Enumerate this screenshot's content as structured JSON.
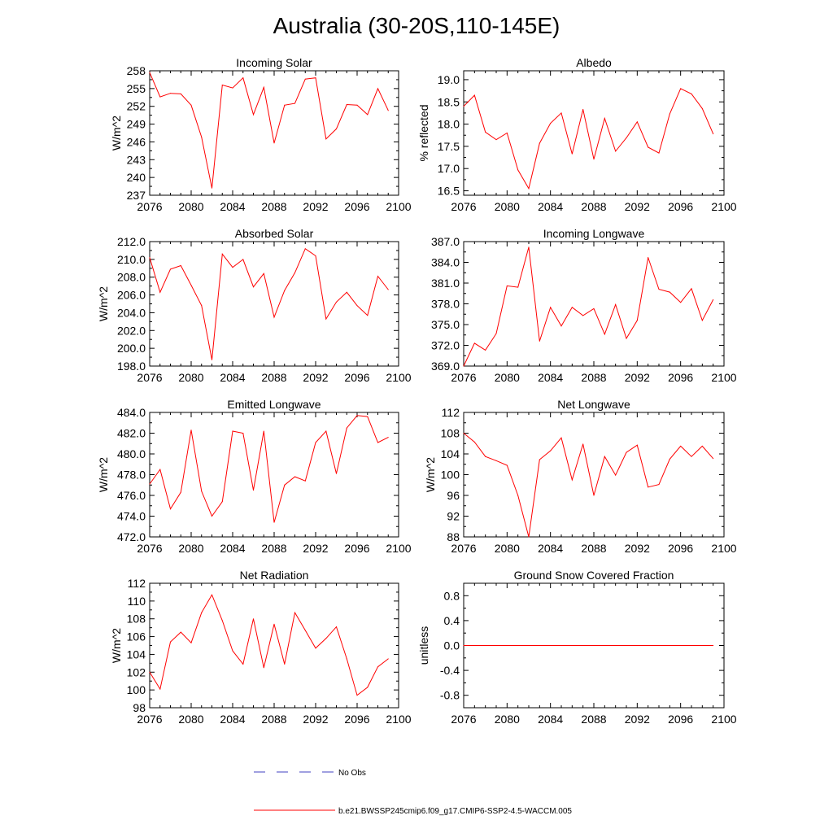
{
  "figure": {
    "title": "Australia (30-20S,110-145E)",
    "line_color": "#ff0000",
    "obs_line_color": "#4040c0"
  },
  "legend": {
    "obs_label": "No Obs",
    "model_label": "b.e21.BWSSP245cmip6.f09_g17.CMIP6-SSP2-4.5-WACCM.005"
  },
  "chart_data": [
    {
      "type": "line",
      "title": "Incoming Solar",
      "xlabel": "",
      "ylabel": "W/m^2",
      "xlim": [
        2076,
        2100
      ],
      "ylim": [
        237,
        258
      ],
      "xticks": [
        2076,
        2080,
        2084,
        2088,
        2092,
        2096,
        2100
      ],
      "xtick_labels": [
        "2076",
        "2080",
        "2084",
        "2088",
        "2092",
        "2096",
        "2100"
      ],
      "yticks": [
        237,
        240,
        243,
        246,
        249,
        252,
        255,
        258
      ],
      "ytick_labels": [
        "237",
        "240",
        "243",
        "246",
        "249",
        "252",
        "255",
        "258"
      ],
      "grid": false,
      "x": [
        2076,
        2077,
        2078,
        2079,
        2080,
        2081,
        2082,
        2083,
        2084,
        2085,
        2086,
        2087,
        2088,
        2089,
        2090,
        2091,
        2092,
        2093,
        2094,
        2095,
        2096,
        2097,
        2098,
        2099
      ],
      "values": [
        257.7,
        253.6,
        254.2,
        254.1,
        252.2,
        246.8,
        238.2,
        255.6,
        255.1,
        256.8,
        250.6,
        255.2,
        245.8,
        252.2,
        252.5,
        256.6,
        256.8,
        246.5,
        248.2,
        252.3,
        252.2,
        250.6,
        255.0,
        251.3
      ]
    },
    {
      "type": "line",
      "title": "Albedo",
      "xlabel": "",
      "ylabel": "% reflected",
      "xlim": [
        2076,
        2100
      ],
      "ylim": [
        16.4,
        19.2
      ],
      "xticks": [
        2076,
        2080,
        2084,
        2088,
        2092,
        2096,
        2100
      ],
      "xtick_labels": [
        "2076",
        "2080",
        "2084",
        "2088",
        "2092",
        "2096",
        "2100"
      ],
      "yticks": [
        16.5,
        17.0,
        17.5,
        18.0,
        18.5,
        19.0
      ],
      "ytick_labels": [
        "16.5",
        "17.0",
        "17.5",
        "18.0",
        "18.5",
        "19.0"
      ],
      "grid": false,
      "x": [
        2076,
        2077,
        2078,
        2079,
        2080,
        2081,
        2082,
        2083,
        2084,
        2085,
        2086,
        2087,
        2088,
        2089,
        2090,
        2091,
        2092,
        2093,
        2094,
        2095,
        2096,
        2097,
        2098,
        2099
      ],
      "values": [
        18.4,
        18.65,
        17.82,
        17.65,
        17.8,
        16.97,
        16.55,
        17.57,
        18.02,
        18.25,
        17.33,
        18.33,
        17.21,
        18.13,
        17.39,
        17.69,
        18.05,
        17.48,
        17.35,
        18.23,
        18.8,
        18.68,
        18.35,
        17.78
      ]
    },
    {
      "type": "line",
      "title": "Absorbed Solar",
      "xlabel": "",
      "ylabel": "W/m^2",
      "xlim": [
        2076,
        2100
      ],
      "ylim": [
        198,
        212
      ],
      "xticks": [
        2076,
        2080,
        2084,
        2088,
        2092,
        2096,
        2100
      ],
      "xtick_labels": [
        "2076",
        "2080",
        "2084",
        "2088",
        "2092",
        "2096",
        "2100"
      ],
      "yticks": [
        198,
        200,
        202,
        204,
        206,
        208,
        210,
        212
      ],
      "ytick_labels": [
        "198.0",
        "200.0",
        "202.0",
        "204.0",
        "206.0",
        "208.0",
        "210.0",
        "212.0"
      ],
      "grid": false,
      "x": [
        2076,
        2077,
        2078,
        2079,
        2080,
        2081,
        2082,
        2083,
        2084,
        2085,
        2086,
        2087,
        2088,
        2089,
        2090,
        2091,
        2092,
        2093,
        2094,
        2095,
        2096,
        2097,
        2098,
        2099
      ],
      "values": [
        210.2,
        206.3,
        208.9,
        209.3,
        207.1,
        204.8,
        198.7,
        210.6,
        209.1,
        210.0,
        206.9,
        208.4,
        203.5,
        206.5,
        208.5,
        211.2,
        210.4,
        203.3,
        205.2,
        206.3,
        204.8,
        203.7,
        208.1,
        206.6
      ]
    },
    {
      "type": "line",
      "title": "Incoming Longwave",
      "xlabel": "",
      "ylabel": "",
      "xlim": [
        2076,
        2100
      ],
      "ylim": [
        369,
        387
      ],
      "xticks": [
        2076,
        2080,
        2084,
        2088,
        2092,
        2096,
        2100
      ],
      "xtick_labels": [
        "2076",
        "2080",
        "2084",
        "2088",
        "2092",
        "2096",
        "2100"
      ],
      "yticks": [
        369,
        372,
        375,
        378,
        381,
        384,
        387
      ],
      "ytick_labels": [
        "369.0",
        "372.0",
        "375.0",
        "378.0",
        "381.0",
        "384.0",
        "387.0"
      ],
      "grid": false,
      "x": [
        2076,
        2077,
        2078,
        2079,
        2080,
        2081,
        2082,
        2083,
        2084,
        2085,
        2086,
        2087,
        2088,
        2089,
        2090,
        2091,
        2092,
        2093,
        2094,
        2095,
        2096,
        2097,
        2098,
        2099
      ],
      "values": [
        369.0,
        372.3,
        371.3,
        373.7,
        380.6,
        380.4,
        386.2,
        372.6,
        377.5,
        374.8,
        377.5,
        376.3,
        377.3,
        373.6,
        377.9,
        373.0,
        375.6,
        384.7,
        380.1,
        379.7,
        378.2,
        380.2,
        375.6,
        378.6
      ]
    },
    {
      "type": "line",
      "title": "Emitted Longwave",
      "xlabel": "",
      "ylabel": "W/m^2",
      "xlim": [
        2076,
        2100
      ],
      "ylim": [
        472,
        484
      ],
      "xticks": [
        2076,
        2080,
        2084,
        2088,
        2092,
        2096,
        2100
      ],
      "xtick_labels": [
        "2076",
        "2080",
        "2084",
        "2088",
        "2092",
        "2096",
        "2100"
      ],
      "yticks": [
        472,
        474,
        476,
        478,
        480,
        482,
        484
      ],
      "ytick_labels": [
        "472.0",
        "474.0",
        "476.0",
        "478.0",
        "480.0",
        "482.0",
        "484.0"
      ],
      "grid": false,
      "x": [
        2076,
        2077,
        2078,
        2079,
        2080,
        2081,
        2082,
        2083,
        2084,
        2085,
        2086,
        2087,
        2088,
        2089,
        2090,
        2091,
        2092,
        2093,
        2094,
        2095,
        2096,
        2097,
        2098,
        2099
      ],
      "values": [
        477.1,
        478.5,
        474.7,
        476.3,
        482.3,
        476.4,
        474.0,
        475.4,
        482.2,
        482.0,
        476.5,
        482.2,
        473.4,
        477.0,
        477.8,
        477.4,
        481.1,
        482.2,
        478.1,
        482.5,
        483.7,
        483.6,
        481.1,
        481.6
      ]
    },
    {
      "type": "line",
      "title": "Net Longwave",
      "xlabel": "",
      "ylabel": "W/m^2",
      "xlim": [
        2076,
        2100
      ],
      "ylim": [
        88,
        112
      ],
      "xticks": [
        2076,
        2080,
        2084,
        2088,
        2092,
        2096,
        2100
      ],
      "xtick_labels": [
        "2076",
        "2080",
        "2084",
        "2088",
        "2092",
        "2096",
        "2100"
      ],
      "yticks": [
        88,
        92,
        96,
        100,
        104,
        108,
        112
      ],
      "ytick_labels": [
        "88",
        "92",
        "96",
        "100",
        "104",
        "108",
        "112"
      ],
      "grid": false,
      "x": [
        2076,
        2077,
        2078,
        2079,
        2080,
        2081,
        2082,
        2083,
        2084,
        2085,
        2086,
        2087,
        2088,
        2089,
        2090,
        2091,
        2092,
        2093,
        2094,
        2095,
        2096,
        2097,
        2098,
        2099
      ],
      "values": [
        108.0,
        106.3,
        103.5,
        102.7,
        101.8,
        96.0,
        88.0,
        102.9,
        104.6,
        107.1,
        99.0,
        105.9,
        96.0,
        103.5,
        99.9,
        104.3,
        105.7,
        97.6,
        98.1,
        103.0,
        105.5,
        103.5,
        105.5,
        103.1
      ]
    },
    {
      "type": "line",
      "title": "Net Radiation",
      "xlabel": "",
      "ylabel": "W/m^2",
      "xlim": [
        2076,
        2100
      ],
      "ylim": [
        98,
        112
      ],
      "xticks": [
        2076,
        2080,
        2084,
        2088,
        2092,
        2096,
        2100
      ],
      "xtick_labels": [
        "2076",
        "2080",
        "2084",
        "2088",
        "2092",
        "2096",
        "2100"
      ],
      "yticks": [
        98,
        100,
        102,
        104,
        106,
        108,
        110,
        112
      ],
      "ytick_labels": [
        "98",
        "100",
        "102",
        "104",
        "106",
        "108",
        "110",
        "112"
      ],
      "grid": false,
      "x": [
        2076,
        2077,
        2078,
        2079,
        2080,
        2081,
        2082,
        2083,
        2084,
        2085,
        2086,
        2087,
        2088,
        2089,
        2090,
        2091,
        2092,
        2093,
        2094,
        2095,
        2096,
        2097,
        2098,
        2099
      ],
      "values": [
        102.0,
        100.1,
        105.4,
        106.5,
        105.3,
        108.7,
        110.7,
        107.8,
        104.4,
        102.9,
        108.0,
        102.5,
        107.4,
        102.9,
        108.7,
        106.7,
        104.7,
        105.8,
        107.1,
        103.5,
        99.4,
        100.3,
        102.6,
        103.5
      ]
    },
    {
      "type": "line",
      "title": "Ground Snow Covered Fraction",
      "xlabel": "",
      "ylabel": "unitless",
      "xlim": [
        2076,
        2100
      ],
      "ylim": [
        -1.0,
        1.0
      ],
      "xticks": [
        2076,
        2080,
        2084,
        2088,
        2092,
        2096,
        2100
      ],
      "xtick_labels": [
        "2076",
        "2080",
        "2084",
        "2088",
        "2092",
        "2096",
        "2100"
      ],
      "yticks": [
        -0.8,
        -0.4,
        0.0,
        0.4,
        0.8
      ],
      "ytick_labels": [
        "-0.8",
        "-0.4",
        "0.0",
        "0.4",
        "0.8"
      ],
      "grid": false,
      "x": [
        2076,
        2077,
        2078,
        2079,
        2080,
        2081,
        2082,
        2083,
        2084,
        2085,
        2086,
        2087,
        2088,
        2089,
        2090,
        2091,
        2092,
        2093,
        2094,
        2095,
        2096,
        2097,
        2098,
        2099
      ],
      "values": [
        0,
        0,
        0,
        0,
        0,
        0,
        0,
        0,
        0,
        0,
        0,
        0,
        0,
        0,
        0,
        0,
        0,
        0,
        0,
        0,
        0,
        0,
        0,
        0
      ]
    }
  ]
}
